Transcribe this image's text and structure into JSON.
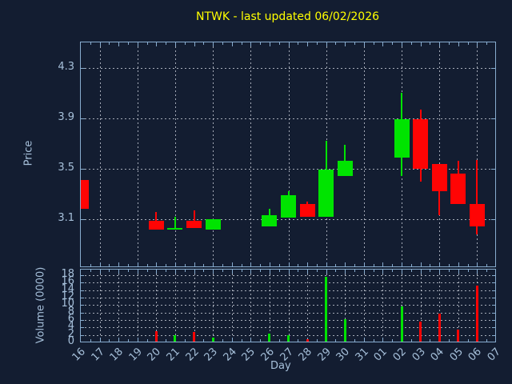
{
  "title": "NTWK - last updated 06/02/2026",
  "colors": {
    "background": "#131d31",
    "title": "#ffff00",
    "axis_spine": "#88accf",
    "grid": "#c9ced8",
    "tick_label": "#a6c0da",
    "up": "#00e400",
    "down": "#ff0404"
  },
  "chart_data": {
    "type": "candlestick_with_volume",
    "title": "NTWK - last updated 06/02/2026",
    "x_axis": {
      "label": "Day",
      "categories": [
        "16",
        "17",
        "18",
        "19",
        "20",
        "21",
        "22",
        "23",
        "24",
        "25",
        "26",
        "27",
        "28",
        "29",
        "30",
        "31",
        "01",
        "02",
        "03",
        "04",
        "05",
        "06",
        "07"
      ],
      "tick_rotation_deg": 45
    },
    "price_axis": {
      "label": "Price",
      "ticks": [
        3.1,
        3.5,
        3.9,
        4.3
      ],
      "range": [
        2.72,
        4.5
      ],
      "grid": "dotted"
    },
    "volume_axis": {
      "label": "Volume (0000)",
      "ticks": [
        0,
        2,
        4,
        6,
        8,
        10,
        12,
        14,
        16,
        18
      ],
      "range": [
        0,
        19.5
      ],
      "grid": "dotted"
    },
    "candles": [
      {
        "day": "16",
        "open": 3.41,
        "high": 3.41,
        "low": 3.18,
        "close": 3.18,
        "volume": 0
      },
      {
        "day": "20",
        "open": 3.09,
        "high": 3.16,
        "low": 3.02,
        "close": 3.02,
        "volume": 3.0
      },
      {
        "day": "21",
        "open": 3.02,
        "high": 3.12,
        "low": 3.02,
        "close": 3.03,
        "volume": 2.0
      },
      {
        "day": "22",
        "open": 3.09,
        "high": 3.17,
        "low": 3.03,
        "close": 3.03,
        "volume": 2.8
      },
      {
        "day": "23",
        "open": 3.02,
        "high": 3.1,
        "low": 3.02,
        "close": 3.1,
        "volume": 1.2
      },
      {
        "day": "26",
        "open": 3.04,
        "high": 3.18,
        "low": 3.04,
        "close": 3.13,
        "volume": 2.4
      },
      {
        "day": "27",
        "open": 3.11,
        "high": 3.32,
        "low": 3.11,
        "close": 3.29,
        "volume": 2.0
      },
      {
        "day": "28",
        "open": 3.22,
        "high": 3.24,
        "low": 3.12,
        "close": 3.12,
        "volume": 0.9
      },
      {
        "day": "29",
        "open": 3.12,
        "high": 3.72,
        "low": 3.12,
        "close": 3.49,
        "volume": 17.5
      },
      {
        "day": "30",
        "open": 3.44,
        "high": 3.69,
        "low": 3.44,
        "close": 3.56,
        "volume": 6.3
      },
      {
        "day": "02",
        "open": 3.59,
        "high": 4.1,
        "low": 3.44,
        "close": 3.89,
        "volume": 9.6
      },
      {
        "day": "03",
        "open": 3.89,
        "high": 3.97,
        "low": 3.4,
        "close": 3.5,
        "volume": 5.5
      },
      {
        "day": "04",
        "open": 3.54,
        "high": 3.54,
        "low": 3.13,
        "close": 3.32,
        "volume": 7.8
      },
      {
        "day": "05",
        "open": 3.46,
        "high": 3.56,
        "low": 3.22,
        "close": 3.22,
        "volume": 3.4
      },
      {
        "day": "06",
        "open": 3.22,
        "high": 3.57,
        "low": 2.98,
        "close": 3.04,
        "volume": 15.2
      }
    ]
  }
}
